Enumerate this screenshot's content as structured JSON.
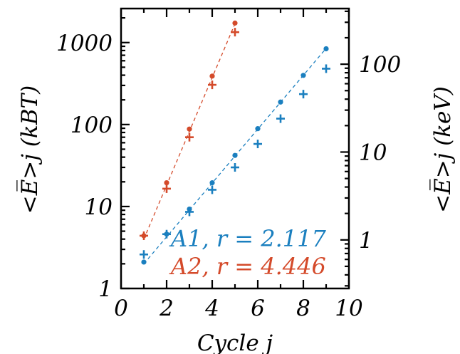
{
  "chart_data": {
    "type": "scatter",
    "xlabel": "Cycle j",
    "ylabel_left": "<E̅>j (kBT)",
    "ylabel_right": "<E̅>j (keV)",
    "xlim": [
      0,
      10
    ],
    "ylim_left": [
      1,
      2600
    ],
    "yscale": "log",
    "ylim_right": [
      0.28,
      430
    ],
    "x_ticks": [
      "0",
      "2",
      "4",
      "6",
      "8",
      "10"
    ],
    "y_ticks_left": [
      {
        "value": 1,
        "label": "1"
      },
      {
        "value": 10,
        "label": "10"
      },
      {
        "value": 100,
        "label": "100"
      },
      {
        "value": 1000,
        "label": "1000"
      }
    ],
    "y_ticks_right": [
      {
        "value": 1,
        "label": "1"
      },
      {
        "value": 10,
        "label": "10"
      },
      {
        "value": 100,
        "label": "100"
      }
    ],
    "series": [
      {
        "name": "A1",
        "color": "#1a7fbf",
        "legend_text": "A1, r =  2.117",
        "dots": [
          [
            1,
            2.1
          ],
          [
            2,
            4.6
          ],
          [
            3,
            9.3
          ],
          [
            4,
            19.5
          ],
          [
            5,
            42
          ],
          [
            6,
            89
          ],
          [
            7,
            188
          ],
          [
            8,
            398
          ],
          [
            9,
            840
          ]
        ],
        "crosses": [
          [
            1,
            2.6
          ],
          [
            2,
            4.6
          ],
          [
            3,
            8.6
          ],
          [
            4,
            16
          ],
          [
            5,
            30
          ],
          [
            6,
            58
          ],
          [
            7,
            118
          ],
          [
            8,
            235
          ],
          [
            9,
            480
          ]
        ],
        "fit": [
          [
            1,
            2.0
          ],
          [
            9,
            850
          ]
        ]
      },
      {
        "name": "A2",
        "color": "#d44a2a",
        "legend_text": "A2, r =  4.446",
        "dots": [
          [
            1,
            4.4
          ],
          [
            2,
            19.5
          ],
          [
            3,
            88
          ],
          [
            4,
            390
          ],
          [
            5,
            1730
          ]
        ],
        "crosses": [
          [
            1,
            4.4
          ],
          [
            2,
            16.5
          ],
          [
            3,
            70
          ],
          [
            4,
            305
          ],
          [
            5,
            1340
          ]
        ],
        "fit": [
          [
            1,
            4.0
          ],
          [
            5,
            1700
          ]
        ]
      }
    ]
  }
}
